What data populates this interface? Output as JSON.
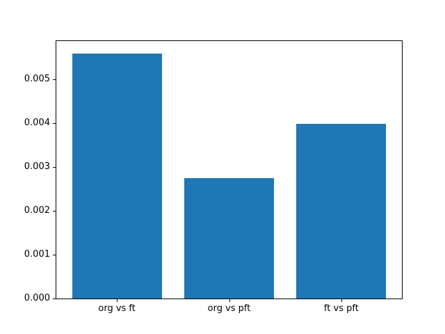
{
  "chart_data": {
    "type": "bar",
    "title": "",
    "xlabel": "",
    "ylabel": "",
    "categories": [
      "org vs ft",
      "org vs pft",
      "ft vs pft"
    ],
    "values": [
      0.00559,
      0.00274,
      0.00398
    ],
    "bar_color": "#1f77b4",
    "bar_width_fraction": 0.8,
    "xlim": [
      -0.54,
      2.54
    ],
    "ylim": [
      0,
      0.00587
    ],
    "yticks": [
      0,
      0.001,
      0.002,
      0.003,
      0.004,
      0.005
    ],
    "ytick_labels": [
      "0.000",
      "0.001",
      "0.002",
      "0.003",
      "0.004",
      "0.005"
    ],
    "grid": false,
    "legend": null,
    "spine_color": "#000000",
    "text_color": "#000000",
    "background_color": "#ffffff"
  }
}
